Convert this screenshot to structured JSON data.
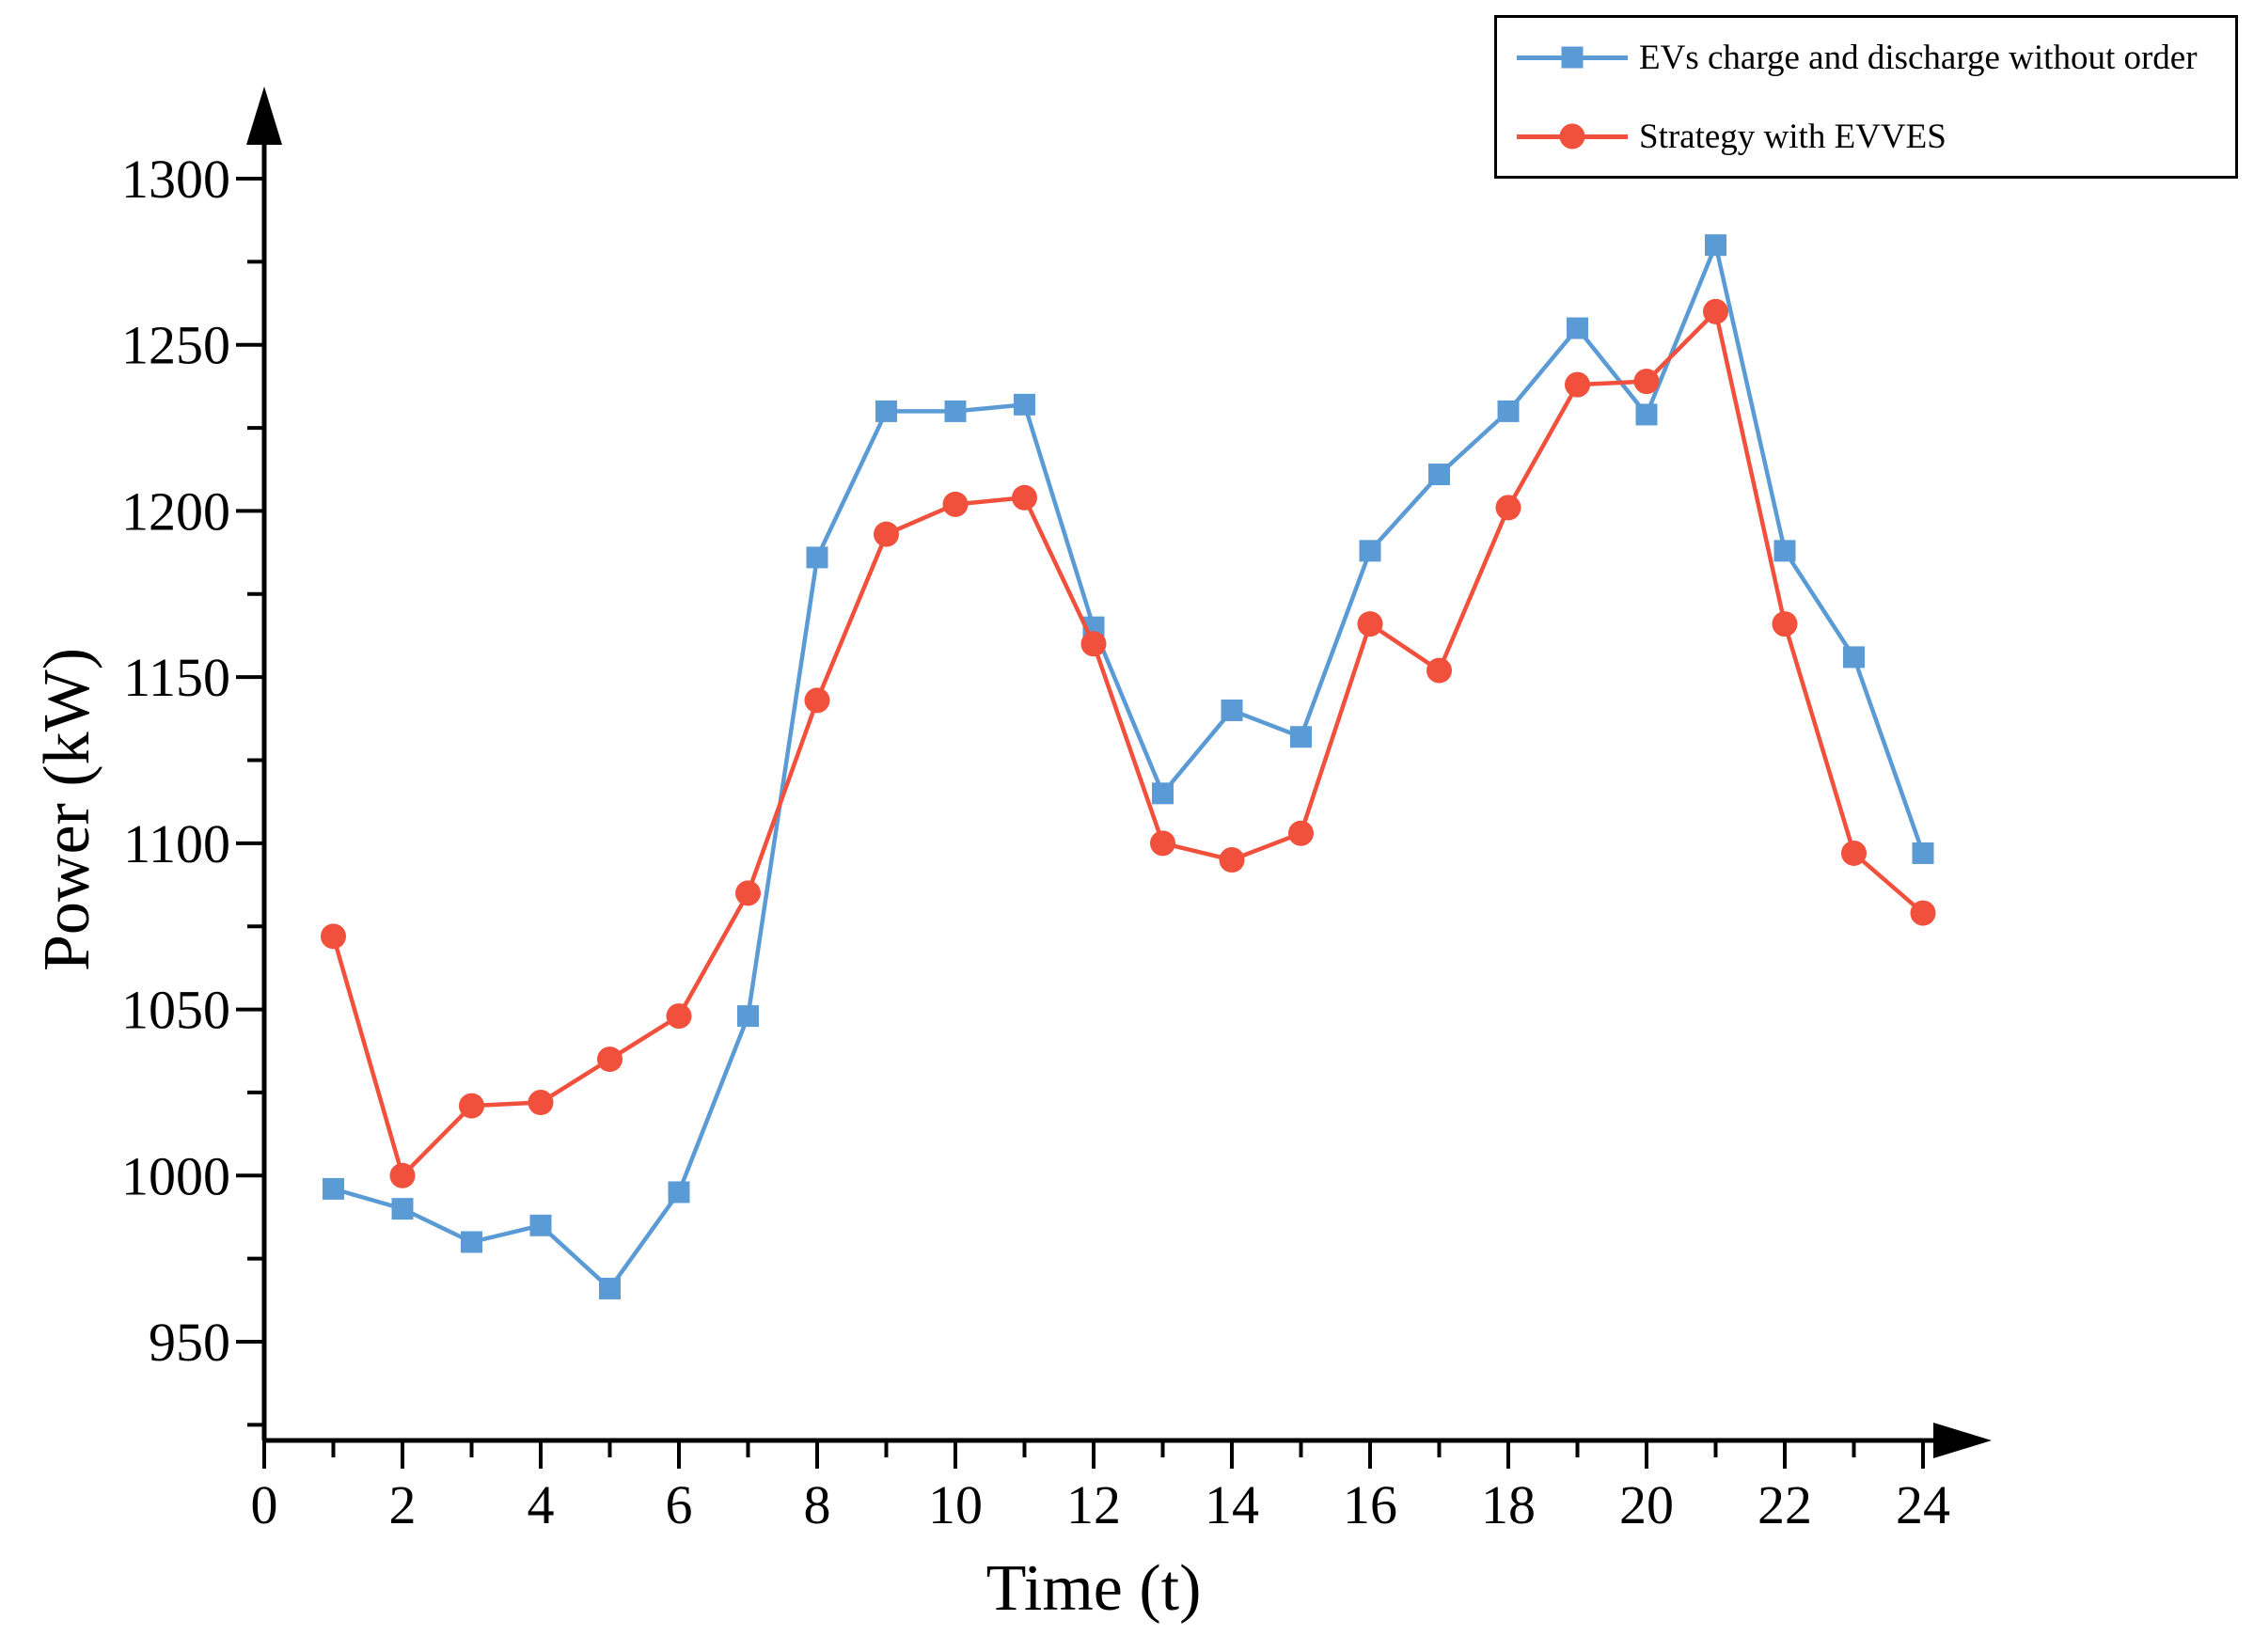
{
  "chart": {
    "ylabel": "Power (kW)",
    "xlabel": "Time (t)",
    "colors": {
      "blue_series": "#5B9BD5",
      "red_series": "#F0503C",
      "axis": "#000000"
    },
    "legend": [
      {
        "label": "EVs charge and discharge without order",
        "marker": "square",
        "color": "#5B9BD5"
      },
      {
        "label": "Strategy with EVVES",
        "marker": "circle",
        "color": "#F0503C"
      }
    ]
  },
  "chart_data": {
    "type": "line",
    "title": "",
    "xlabel": "Time (t)",
    "ylabel": "Power (kW)",
    "xlim": [
      0,
      24
    ],
    "ylim": [
      920,
      1330
    ],
    "grid": false,
    "legend_position": "top-right",
    "x_major_ticks": [
      0,
      2,
      4,
      6,
      8,
      10,
      12,
      14,
      16,
      18,
      20,
      22,
      24
    ],
    "x_minor_ticks": [
      1,
      3,
      5,
      7,
      9,
      11,
      13,
      15,
      17,
      19,
      21,
      23
    ],
    "y_major_ticks": [
      950,
      1000,
      1050,
      1100,
      1150,
      1200,
      1250,
      1300
    ],
    "y_minor_ticks": [
      925,
      975,
      1025,
      1075,
      1125,
      1175,
      1225,
      1275
    ],
    "x": [
      1,
      2,
      3,
      4,
      5,
      6,
      7,
      8,
      9,
      10,
      11,
      12,
      13,
      14,
      15,
      16,
      17,
      18,
      19,
      20,
      21,
      22,
      23,
      24
    ],
    "series": [
      {
        "name": "EVs charge and discharge without order",
        "marker": "square",
        "color": "#5B9BD5",
        "values": [
          996,
          990,
          980,
          985,
          966,
          995,
          1048,
          1186,
          1230,
          1230,
          1232,
          1165,
          1115,
          1140,
          1132,
          1188,
          1211,
          1230,
          1255,
          1229,
          1280,
          1188,
          1156,
          1097
        ]
      },
      {
        "name": "Strategy with EVVES",
        "marker": "circle",
        "color": "#F0503C",
        "values": [
          1072,
          1000,
          1021,
          1022,
          1035,
          1048,
          1085,
          1143,
          1193,
          1202,
          1204,
          1160,
          1100,
          1095,
          1103,
          1166,
          1152,
          1201,
          1238,
          1239,
          1260,
          1166,
          1097,
          1079
        ]
      }
    ]
  }
}
